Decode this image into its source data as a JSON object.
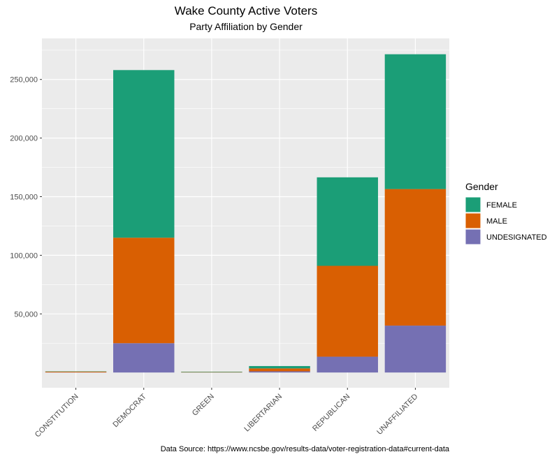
{
  "chart_data": {
    "type": "bar",
    "stacked": true,
    "title": "Wake County Active Voters",
    "subtitle": "Party Affiliation by Gender",
    "caption": "Data Source: https://www.ncsbe.gov/results-data/voter-registration-data#current-data",
    "categories": [
      "CONSTITUTION",
      "DEMOCRAT",
      "GREEN",
      "LIBERTARIAN",
      "REPUBLICAN",
      "UNAFFILIATED"
    ],
    "series": [
      {
        "name": "UNDESIGNATED",
        "color": "#7570b3",
        "values": [
          100,
          25000,
          50,
          1000,
          13500,
          40000
        ]
      },
      {
        "name": "MALE",
        "color": "#d95f02",
        "values": [
          600,
          90000,
          300,
          2500,
          77500,
          116500
        ]
      },
      {
        "name": "FEMALE",
        "color": "#1b9e77",
        "values": [
          250,
          143000,
          350,
          2000,
          75500,
          115000
        ]
      }
    ],
    "legend": {
      "title": "Gender",
      "entries": [
        "FEMALE",
        "MALE",
        "UNDESIGNATED"
      ],
      "position": "right"
    },
    "y_ticks": [
      50000,
      100000,
      150000,
      200000,
      250000
    ],
    "y_tick_labels": [
      "50,000",
      "100,000",
      "150,000",
      "200,000",
      "250,000"
    ],
    "ylim": [
      -13000,
      285000
    ],
    "grid": true,
    "panel_color": "#ebebeb"
  }
}
